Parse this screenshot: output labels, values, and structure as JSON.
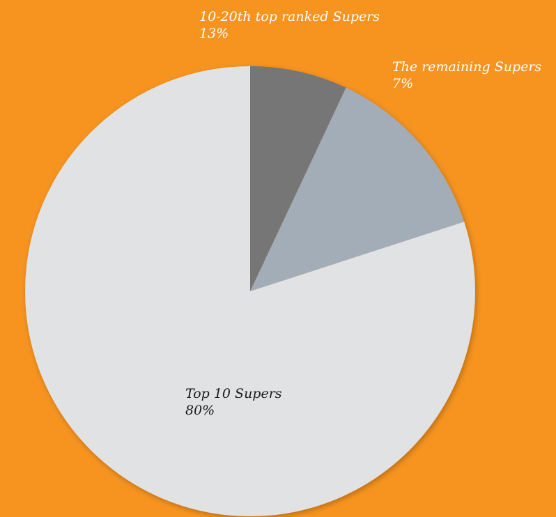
{
  "chart_data": {
    "type": "pie",
    "title": "",
    "start_angle_deg": 0,
    "direction": "counterclockwise",
    "slices": [
      {
        "label": "Top 10 Supers",
        "value": 80,
        "value_label": "80%",
        "color": "#E1E2E3",
        "text_color": "#1a1a1a"
      },
      {
        "label": "10-20th top ranked Supers",
        "value": 13,
        "value_label": "13%",
        "color": "#A3ADB8",
        "text_color": "#ffffff"
      },
      {
        "label": "The remaining Supers",
        "value": 7,
        "value_label": "7%",
        "color": "#767676",
        "text_color": "#ffffff"
      }
    ]
  },
  "colors": {
    "background": "#F7941F"
  }
}
